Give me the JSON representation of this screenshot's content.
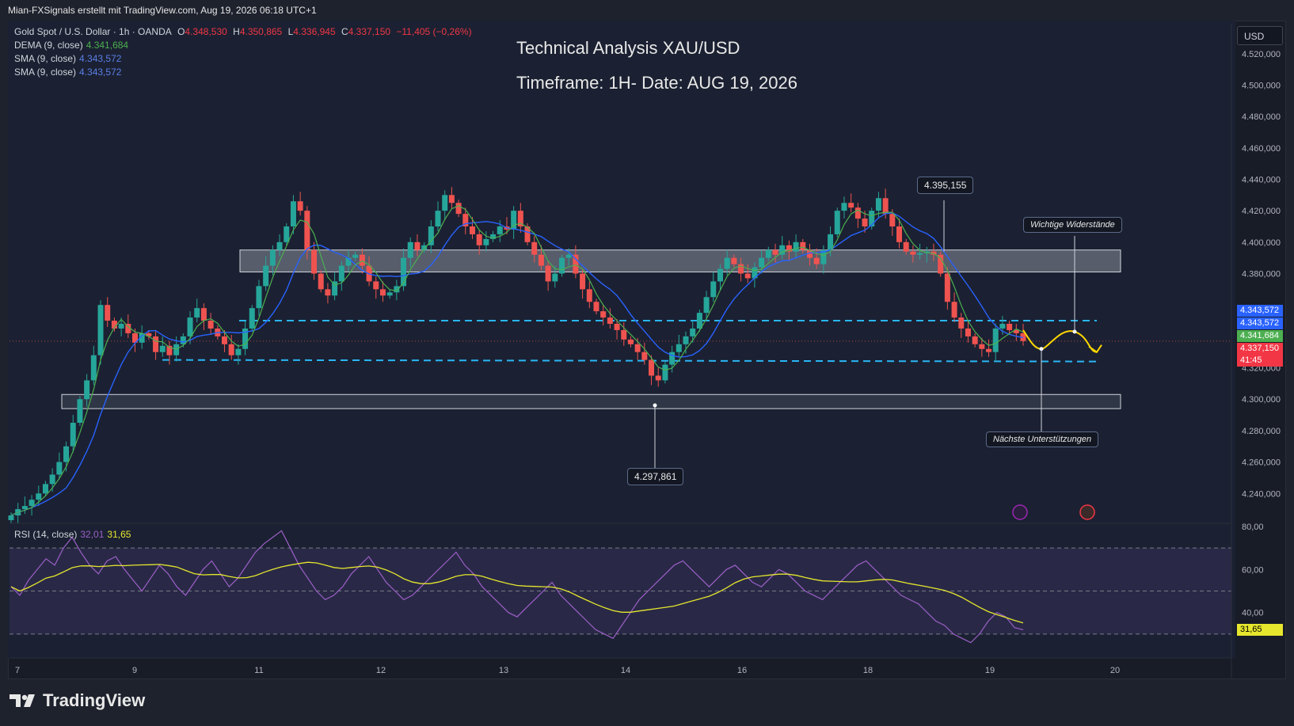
{
  "topbar": {
    "text": "Mian-FXSignals erstellt mit TradingView.com, Aug 19, 2026 06:18 UTC+1"
  },
  "legend": {
    "symbol": "Gold Spot / U.S. Dollar · 1h · OANDA",
    "o_label": "O",
    "o": "4.348,530",
    "h_label": "H",
    "h": "4.350,865",
    "l_label": "L",
    "l": "4.336,945",
    "c_label": "C",
    "c": "4.337,150",
    "change": "−11,405 (−0,26%)",
    "dema_label": "DEMA (9, close)",
    "dema": "4.341,684",
    "sma1_label": "SMA (9, close)",
    "sma1": "4.343,572",
    "sma2_label": "SMA (9, close)",
    "sma2": "4.343,572",
    "rsi_label": "RSI (14, close)",
    "rsi": "32,01",
    "rsi_ma": "31,65"
  },
  "title": "Technical Analysis XAU/USD",
  "subtitle": "Timeframe: 1H- Date: AUG 19, 2026",
  "currency": "USD",
  "callouts": {
    "high": "4.395,155",
    "low": "4.297,861",
    "resistance": "Wichtige Widerstände",
    "support": "Nächste Unterstützungen"
  },
  "badges": {
    "sma1": "4.343,572",
    "sma2": "4.343,572",
    "dema": "4.341,684",
    "close": "4.337,150",
    "countdown": "41:45",
    "rsi_ma": "31,65"
  },
  "colors": {
    "up": "#26a69a",
    "down": "#ef5350",
    "sma": "#2962ff",
    "dema": "#4caf50",
    "rsi": "#9c5fc7",
    "rsi_ma": "#e6e62e",
    "level": "#29b6f6",
    "forecast": "#ffd600"
  },
  "brand": "TradingView",
  "chart_data": [
    {
      "type": "candlestick",
      "y_ticks": [
        "4.520,000",
        "4.500,000",
        "4.480,000",
        "4.460,000",
        "4.440,000",
        "4.420,000",
        "4.400,000",
        "4.380,000",
        "4.320,000",
        "4.300,000",
        "4.280,000",
        "4.260,000",
        "4.240,000"
      ],
      "ylim": [
        4224,
        4534
      ],
      "x_ticks": [
        "7",
        "9",
        "11",
        "12",
        "13",
        "14",
        "16",
        "18",
        "19",
        "20"
      ],
      "close_path": [
        4226,
        4230,
        4232,
        4236,
        4240,
        4246,
        4252,
        4260,
        4270,
        4285,
        4300,
        4312,
        4328,
        4360,
        4350,
        4345,
        4348,
        4342,
        4336,
        4342,
        4340,
        4330,
        4334,
        4328,
        4335,
        4340,
        4352,
        4358,
        4350,
        4345,
        4340,
        4335,
        4328,
        4332,
        4345,
        4358,
        4372,
        4385,
        4395,
        4400,
        4410,
        4426,
        4420,
        4395,
        4380,
        4370,
        4366,
        4375,
        4385,
        4390,
        4392,
        4385,
        4375,
        4370,
        4366,
        4368,
        4372,
        4390,
        4400,
        4395,
        4398,
        4410,
        4420,
        4430,
        4425,
        4418,
        4410,
        4405,
        4398,
        4402,
        4405,
        4410,
        4408,
        4420,
        4410,
        4400,
        4392,
        4385,
        4375,
        4380,
        4390,
        4392,
        4380,
        4370,
        4362,
        4356,
        4352,
        4348,
        4344,
        4338,
        4335,
        4330,
        4325,
        4315,
        4312,
        4322,
        4330,
        4335,
        4340,
        4345,
        4355,
        4365,
        4375,
        4383,
        4390,
        4386,
        4380,
        4377,
        4384,
        4390,
        4395,
        4392,
        4398,
        4394,
        4400,
        4395,
        4390,
        4386,
        4395,
        4405,
        4420,
        4425,
        4422,
        4415,
        4410,
        4420,
        4428,
        4418,
        4410,
        4400,
        4394,
        4392,
        4393,
        4394,
        4392,
        4380,
        4362,
        4352,
        4345,
        4340,
        4335,
        4332,
        4330,
        4345,
        4348,
        4344,
        4342,
        4337
      ],
      "dema_last": 4341.684,
      "sma_last": 4343.572,
      "resistance_zone": [
        4381,
        4395
      ],
      "support_zone": [
        4294,
        4303
      ],
      "dashed_levels": [
        4350,
        4325
      ],
      "forecast_path": [
        4344,
        4332,
        4343,
        4330
      ]
    },
    {
      "type": "line",
      "name": "RSI (14, close)",
      "y_ticks": [
        "80,00",
        "60,00",
        "40,00"
      ],
      "ylim": [
        20,
        80
      ],
      "bands": [
        70,
        50,
        30
      ],
      "values": [
        52,
        48,
        55,
        60,
        65,
        62,
        70,
        75,
        68,
        62,
        58,
        64,
        66,
        60,
        55,
        50,
        56,
        62,
        58,
        52,
        48,
        54,
        60,
        64,
        58,
        52,
        56,
        62,
        68,
        72,
        75,
        78,
        70,
        62,
        56,
        50,
        46,
        48,
        52,
        58,
        62,
        66,
        60,
        54,
        50,
        46,
        48,
        52,
        56,
        60,
        64,
        68,
        62,
        58,
        52,
        48,
        44,
        40,
        38,
        42,
        46,
        50,
        54,
        48,
        44,
        40,
        36,
        32,
        30,
        28,
        34,
        40,
        46,
        50,
        54,
        58,
        62,
        64,
        60,
        56,
        52,
        56,
        60,
        62,
        58,
        54,
        52,
        56,
        60,
        58,
        54,
        50,
        48,
        46,
        50,
        54,
        58,
        62,
        64,
        60,
        56,
        52,
        48,
        46,
        44,
        40,
        36,
        34,
        30,
        28,
        26,
        30,
        36,
        40,
        38,
        33,
        32
      ]
    }
  ]
}
